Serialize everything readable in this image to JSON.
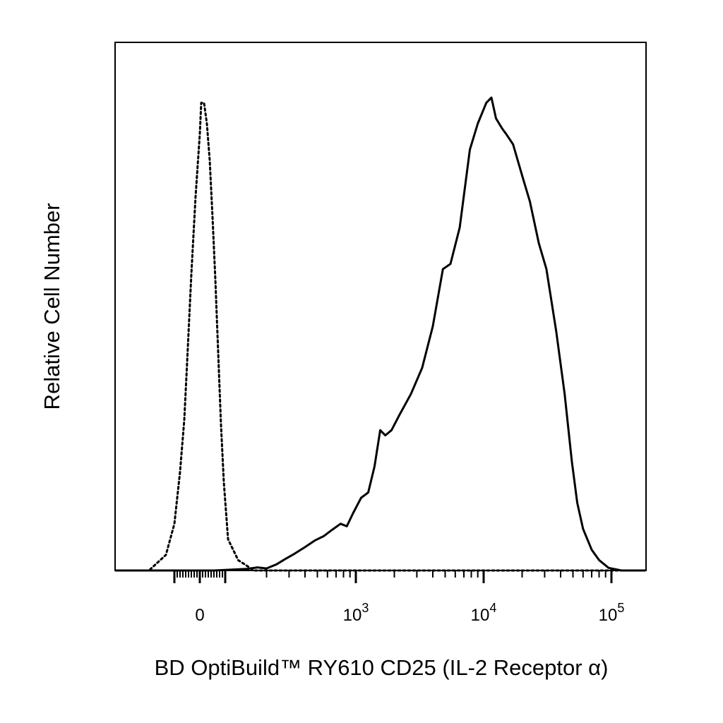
{
  "chart_data": {
    "type": "line",
    "title": "",
    "xlabel": "BD OptiBuild™ RY610 CD25 (IL-2 Receptor α)",
    "ylabel": "Relative Cell Number",
    "x_scale": "biexponential",
    "xlim": [
      -300,
      200000
    ],
    "ylim": [
      0,
      1.0
    ],
    "grid": false,
    "legend": "none",
    "x_tick_labels": [
      {
        "value": 0,
        "base": "0",
        "exp": ""
      },
      {
        "value": 1000,
        "base": "10",
        "exp": "3"
      },
      {
        "value": 10000,
        "base": "10",
        "exp": "4"
      },
      {
        "value": 100000,
        "base": "10",
        "exp": "5"
      }
    ],
    "series": [
      {
        "style": "dotted",
        "color": "#000000",
        "points": [
          [
            -300,
            0.0
          ],
          [
            -180,
            0.0
          ],
          [
            -120,
            0.03
          ],
          [
            -90,
            0.09
          ],
          [
            -70,
            0.19
          ],
          [
            -55,
            0.29
          ],
          [
            -45,
            0.4
          ],
          [
            -30,
            0.57
          ],
          [
            -15,
            0.72
          ],
          [
            -5,
            0.8
          ],
          [
            0,
            0.84
          ],
          [
            5,
            0.9
          ],
          [
            15,
            0.9
          ],
          [
            25,
            0.86
          ],
          [
            35,
            0.79
          ],
          [
            45,
            0.68
          ],
          [
            55,
            0.56
          ],
          [
            65,
            0.42
          ],
          [
            75,
            0.28
          ],
          [
            85,
            0.17
          ],
          [
            100,
            0.06
          ],
          [
            120,
            0.02
          ],
          [
            160,
            0.0
          ],
          [
            200000,
            0.0
          ]
        ]
      },
      {
        "style": "solid",
        "color": "#000000",
        "points": [
          [
            -300,
            0.0
          ],
          [
            50,
            0.0
          ],
          [
            140,
            0.003
          ],
          [
            170,
            0.006
          ],
          [
            200,
            0.004
          ],
          [
            240,
            0.012
          ],
          [
            280,
            0.022
          ],
          [
            330,
            0.032
          ],
          [
            400,
            0.045
          ],
          [
            480,
            0.058
          ],
          [
            560,
            0.066
          ],
          [
            650,
            0.078
          ],
          [
            760,
            0.09
          ],
          [
            850,
            0.085
          ],
          [
            950,
            0.11
          ],
          [
            1100,
            0.14
          ],
          [
            1250,
            0.15
          ],
          [
            1400,
            0.2
          ],
          [
            1550,
            0.27
          ],
          [
            1700,
            0.26
          ],
          [
            1900,
            0.27
          ],
          [
            2200,
            0.3
          ],
          [
            2700,
            0.34
          ],
          [
            3300,
            0.39
          ],
          [
            4000,
            0.47
          ],
          [
            4800,
            0.58
          ],
          [
            5500,
            0.59
          ],
          [
            6500,
            0.66
          ],
          [
            7800,
            0.81
          ],
          [
            9000,
            0.86
          ],
          [
            10500,
            0.9
          ],
          [
            11500,
            0.91
          ],
          [
            12500,
            0.87
          ],
          [
            14000,
            0.85
          ],
          [
            15000,
            0.84
          ],
          [
            17000,
            0.82
          ],
          [
            20000,
            0.76
          ],
          [
            23000,
            0.71
          ],
          [
            27000,
            0.63
          ],
          [
            31000,
            0.58
          ],
          [
            37000,
            0.46
          ],
          [
            43000,
            0.34
          ],
          [
            49000,
            0.21
          ],
          [
            54000,
            0.13
          ],
          [
            60000,
            0.08
          ],
          [
            70000,
            0.04
          ],
          [
            80000,
            0.02
          ],
          [
            95000,
            0.005
          ],
          [
            120000,
            0.0
          ],
          [
            200000,
            0.0
          ]
        ]
      }
    ]
  }
}
